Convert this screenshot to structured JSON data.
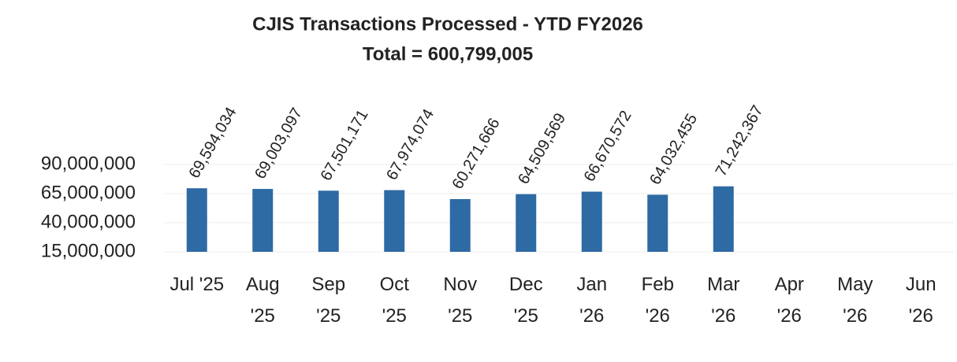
{
  "chart_data": {
    "type": "bar",
    "title": "CJIS Transactions Processed - YTD FY2026",
    "subtitle": "Total = 600,799,005",
    "categories": [
      "Jul '25",
      "Aug '25",
      "Sep '25",
      "Oct '25",
      "Nov '25",
      "Dec '25",
      "Jan '26",
      "Feb '26",
      "Mar '26",
      "Apr '26",
      "May '26",
      "Jun '26"
    ],
    "values": [
      69594034,
      69003097,
      67501171,
      67974074,
      60271666,
      64509569,
      66670572,
      64032455,
      71242367,
      null,
      null,
      null
    ],
    "value_labels": [
      "69,594,034",
      "69,003,097",
      "67,501,171",
      "67,974,074",
      "60,271,666",
      "64,509,569",
      "66,670,572",
      "64,032,455",
      "71,242,367",
      null,
      null,
      null
    ],
    "color": "#2e6aa4",
    "ylim": [
      15000000,
      90000000
    ],
    "yticks": [
      {
        "value": 15000000,
        "label": "15,000,000"
      },
      {
        "value": 40000000,
        "label": "40,000,000"
      },
      {
        "value": 65000000,
        "label": "65,000,000"
      },
      {
        "value": 90000000,
        "label": "90,000,000"
      }
    ],
    "grid": true
  }
}
